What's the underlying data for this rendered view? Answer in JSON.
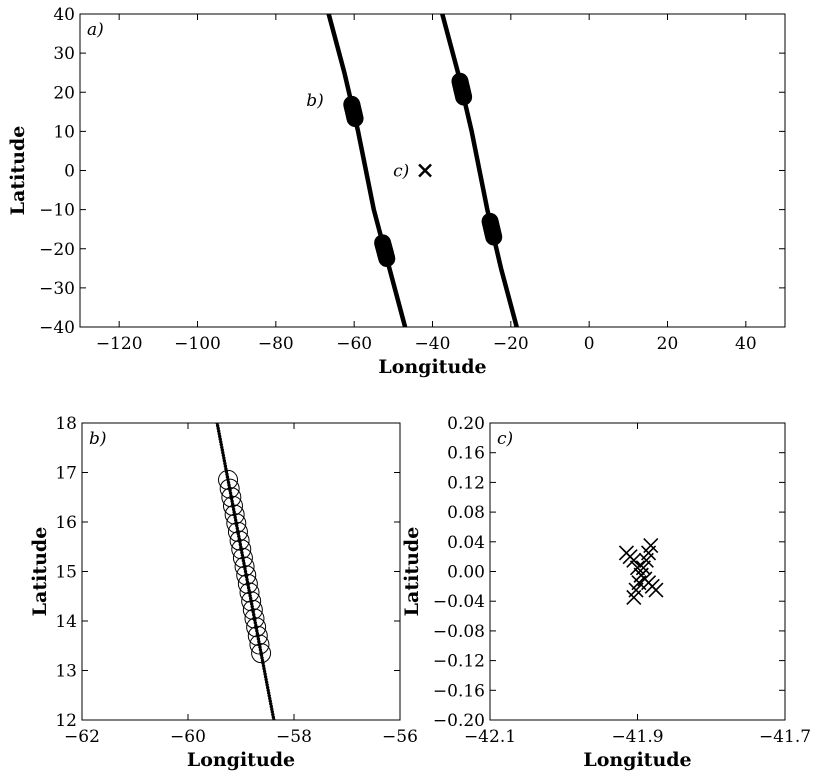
{
  "chart_data": [
    {
      "id": "a",
      "type": "scatter",
      "panel_label": "a)",
      "xlabel": "Longitude",
      "ylabel": "Latitude",
      "xlim": [
        -130,
        50
      ],
      "ylim": [
        -40,
        40
      ],
      "xticks": [
        -120,
        -100,
        -80,
        -60,
        -40,
        -20,
        0,
        20,
        40
      ],
      "yticks": [
        -40,
        -30,
        -20,
        -10,
        0,
        10,
        20,
        30,
        40
      ],
      "grid": false,
      "tracks": [
        {
          "points": [
            [
              -66.5,
              40
            ],
            [
              -62.5,
              25
            ],
            [
              -59,
              10
            ],
            [
              -55,
              -10
            ],
            [
              -51,
              -25
            ],
            [
              -47,
              -40
            ]
          ]
        },
        {
          "points": [
            [
              -37.5,
              40
            ],
            [
              -33.5,
              25
            ],
            [
              -30,
              10
            ],
            [
              -26,
              -10
            ],
            [
              -22.5,
              -25
            ],
            [
              -18.5,
              -40
            ]
          ]
        }
      ],
      "clusters": [
        {
          "lon_range": [
            -59.3,
            -58.5
          ],
          "lat_range": [
            13.3,
            16.9
          ]
        },
        {
          "lon_range": [
            -52.0,
            -51.0
          ],
          "lat_range": [
            -22.5,
            -18.5
          ]
        },
        {
          "lon_range": [
            -33.2,
            -32.2
          ],
          "lat_range": [
            18.8,
            22.8
          ]
        },
        {
          "lon_range": [
            -26.0,
            -25.0
          ],
          "lat_range": [
            -17.0,
            -13.0
          ]
        }
      ],
      "marker_x": {
        "lon": -41.9,
        "lat": 0.0
      },
      "annotations": [
        {
          "text": "b)",
          "lon": -70,
          "lat": 18
        },
        {
          "text": "c)",
          "lon": -48,
          "lat": 0
        }
      ]
    },
    {
      "id": "b",
      "type": "scatter",
      "panel_label": "b)",
      "xlabel": "Longitude",
      "ylabel": "Latitude",
      "xlim": [
        -62,
        -56
      ],
      "ylim": [
        12,
        18
      ],
      "xticks": [
        -62,
        -60,
        -58,
        -56
      ],
      "yticks": [
        12,
        13,
        14,
        15,
        16,
        17,
        18
      ],
      "grid": false,
      "track": {
        "start": [
          -59.45,
          18.0
        ],
        "end": [
          -58.38,
          12.0
        ]
      },
      "circle_range": {
        "lat_start": 16.85,
        "lat_end": 13.35
      }
    },
    {
      "id": "c",
      "type": "scatter",
      "panel_label": "c)",
      "xlabel": "Longitude",
      "ylabel": "Latitude",
      "xlim": [
        -42.1,
        -41.7
      ],
      "ylim": [
        -0.2,
        0.2
      ],
      "xticks": [
        -42.1,
        -41.9,
        -41.7
      ],
      "yticks": [
        -0.2,
        -0.16,
        -0.12,
        -0.08,
        -0.04,
        0.0,
        0.04,
        0.08,
        0.12,
        0.16,
        0.2
      ],
      "grid": false,
      "x_markers": [
        [
          -41.915,
          0.025
        ],
        [
          -41.91,
          0.02
        ],
        [
          -41.905,
          0.015
        ],
        [
          -41.9,
          0.005
        ],
        [
          -41.895,
          -0.005
        ],
        [
          -41.89,
          -0.01
        ],
        [
          -41.885,
          -0.015
        ],
        [
          -41.88,
          -0.02
        ],
        [
          -41.875,
          -0.025
        ],
        [
          -41.905,
          -0.035
        ],
        [
          -41.902,
          -0.025
        ],
        [
          -41.898,
          -0.015
        ],
        [
          -41.895,
          -0.005
        ],
        [
          -41.892,
          0.005
        ],
        [
          -41.888,
          0.015
        ],
        [
          -41.885,
          0.025
        ],
        [
          -41.882,
          0.035
        ]
      ]
    }
  ]
}
